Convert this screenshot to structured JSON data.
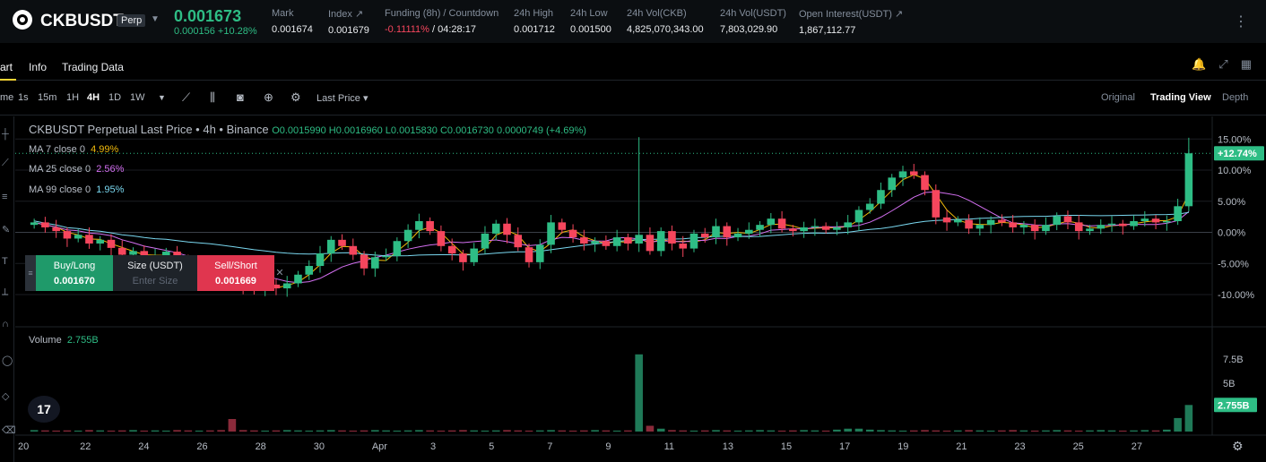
{
  "ticker": {
    "symbol": "CKBUSDT",
    "badge": "Perp",
    "price": "0.001673",
    "change": "0.000156 +10.28%",
    "stats": [
      {
        "label": "Mark",
        "value": "0.001674"
      },
      {
        "label": "Index ↗",
        "value": "0.001679"
      },
      {
        "label": "Funding (8h) / Countdown",
        "value": "-0.11111%",
        "value2": "/ 04:28:17"
      },
      {
        "label": "24h High",
        "value": "0.001712"
      },
      {
        "label": "24h Low",
        "value": "0.001500"
      },
      {
        "label": "24h Vol(CKB)",
        "value": "4,825,070,343.00"
      },
      {
        "label": "24h Vol(USDT)",
        "value": "7,803,029.90"
      },
      {
        "label": "Open Interest(USDT) ↗",
        "value": "1,867,112.77"
      }
    ]
  },
  "tabs": [
    "art",
    "Info",
    "Trading Data"
  ],
  "toolbar": {
    "intervals": [
      "me",
      "1s",
      "15m",
      "1H",
      "4H",
      "1D",
      "1W"
    ],
    "active_interval": "4H",
    "price_type": "Last Price ▾",
    "views": [
      "Original",
      "Trading View",
      "Depth"
    ],
    "active_view": "Trading View"
  },
  "chart_header": {
    "title": "CKBUSDT Perpetual Last Price • 4h • Binance",
    "ohlc": "O0.0015990  H0.0016960  L0.0015830  C0.0016730  0.0000749 (+4.69%)"
  },
  "ma": [
    {
      "label": "MA 7 close 0",
      "value": "4.99%",
      "color": "#f0b90b"
    },
    {
      "label": "MA 25 close 0",
      "value": "2.56%",
      "color": "#d36ff0"
    },
    {
      "label": "MA 99 close 0",
      "value": "1.95%",
      "color": "#7ad8f0"
    }
  ],
  "order": {
    "buy_label": "Buy/Long",
    "buy_price": "0.001670",
    "size_label": "Size (USDT)",
    "size_placeholder": "Enter Size",
    "sell_label": "Sell/Short",
    "sell_price": "0.001669"
  },
  "volume": {
    "label": "Volume",
    "value": "2.755B"
  },
  "chart_data": {
    "type": "candlestick",
    "title": "CKBUSDT Perpetual Last Price • 4h • Binance",
    "y_axis_ticks": [
      "15.00%",
      "10.00%",
      "5.00%",
      "0.00%",
      "-5.00%",
      "-10.00%"
    ],
    "y_range_percent": [
      -11,
      16
    ],
    "current_label": "+12.74%",
    "volume_ticks": [
      "7.5B",
      "5B"
    ],
    "volume_current": "2.755B",
    "x_ticks": [
      "20",
      "22",
      "24",
      "26",
      "28",
      "30",
      "Apr",
      "3",
      "5",
      "7",
      "9",
      "11",
      "13",
      "15",
      "17",
      "19",
      "21",
      "23",
      "25",
      "27"
    ],
    "colors": {
      "up": "#2ebd85",
      "down": "#f6465d"
    },
    "close_percent": [
      1.6,
      0.8,
      0.2,
      -1.0,
      -0.4,
      -1.8,
      -1.2,
      -2.5,
      -3.6,
      -3.0,
      -4.2,
      -3.8,
      -3.1,
      -4.8,
      -5.6,
      -4.6,
      -5.2,
      -6.8,
      -7.6,
      -8.6,
      -9.4,
      -8.4,
      -9.0,
      -8.2,
      -6.8,
      -5.4,
      -3.4,
      -1.2,
      -2.2,
      -3.6,
      -5.8,
      -4.0,
      -3.8,
      -1.4,
      0.4,
      1.8,
      0.2,
      -2.2,
      -3.4,
      -4.8,
      -2.6,
      -0.2,
      1.4,
      -0.4,
      -2.4,
      -4.8,
      -2.0,
      1.6,
      0.4,
      -0.8,
      -1.8,
      -1.4,
      -2.2,
      -0.8,
      -1.8,
      -0.4,
      -3.0,
      0.2,
      -1.8,
      -2.6,
      -0.2,
      -0.8,
      1.0,
      -0.8,
      -0.2,
      0.4,
      1.2,
      2.2,
      0.6,
      0.2,
      0.8,
      1.0,
      0.4,
      0.8,
      1.6,
      3.6,
      4.6,
      6.8,
      8.8,
      9.8,
      9.2,
      6.8,
      2.4,
      1.6,
      2.0,
      0.6,
      1.2,
      2.0,
      1.6,
      0.8,
      1.2,
      0.2,
      1.2,
      2.6,
      1.6,
      0.2,
      0.6,
      1.2,
      1.4,
      1.0,
      1.8,
      2.2,
      1.6,
      1.8,
      4.2,
      12.7
    ],
    "volume_billions": [
      0.15,
      0.12,
      0.1,
      0.12,
      0.1,
      0.15,
      0.12,
      0.1,
      0.12,
      0.15,
      0.1,
      0.12,
      0.1,
      0.15,
      0.12,
      0.1,
      0.12,
      0.15,
      1.3,
      0.15,
      0.12,
      0.1,
      0.12,
      0.15,
      0.12,
      0.1,
      0.12,
      0.15,
      0.12,
      0.1,
      0.12,
      0.15,
      0.12,
      0.1,
      0.12,
      0.15,
      0.12,
      0.1,
      0.12,
      0.15,
      0.12,
      0.1,
      0.12,
      0.15,
      0.12,
      0.1,
      0.12,
      0.15,
      0.12,
      0.1,
      0.12,
      0.15,
      0.12,
      0.1,
      0.12,
      8.0,
      0.6,
      0.3,
      0.15,
      0.12,
      0.1,
      0.12,
      0.15,
      0.12,
      0.1,
      0.12,
      0.15,
      0.12,
      0.1,
      0.12,
      0.15,
      0.12,
      0.1,
      0.2,
      0.3,
      0.3,
      0.2,
      0.15,
      0.12,
      0.1,
      0.12,
      0.15,
      0.12,
      0.1,
      0.12,
      0.15,
      0.12,
      0.1,
      0.12,
      0.15,
      0.12,
      0.1,
      0.12,
      0.15,
      0.12,
      0.1,
      0.12,
      0.15,
      0.12,
      0.1,
      0.12,
      0.15,
      0.12,
      0.2,
      1.4,
      2.755
    ]
  }
}
